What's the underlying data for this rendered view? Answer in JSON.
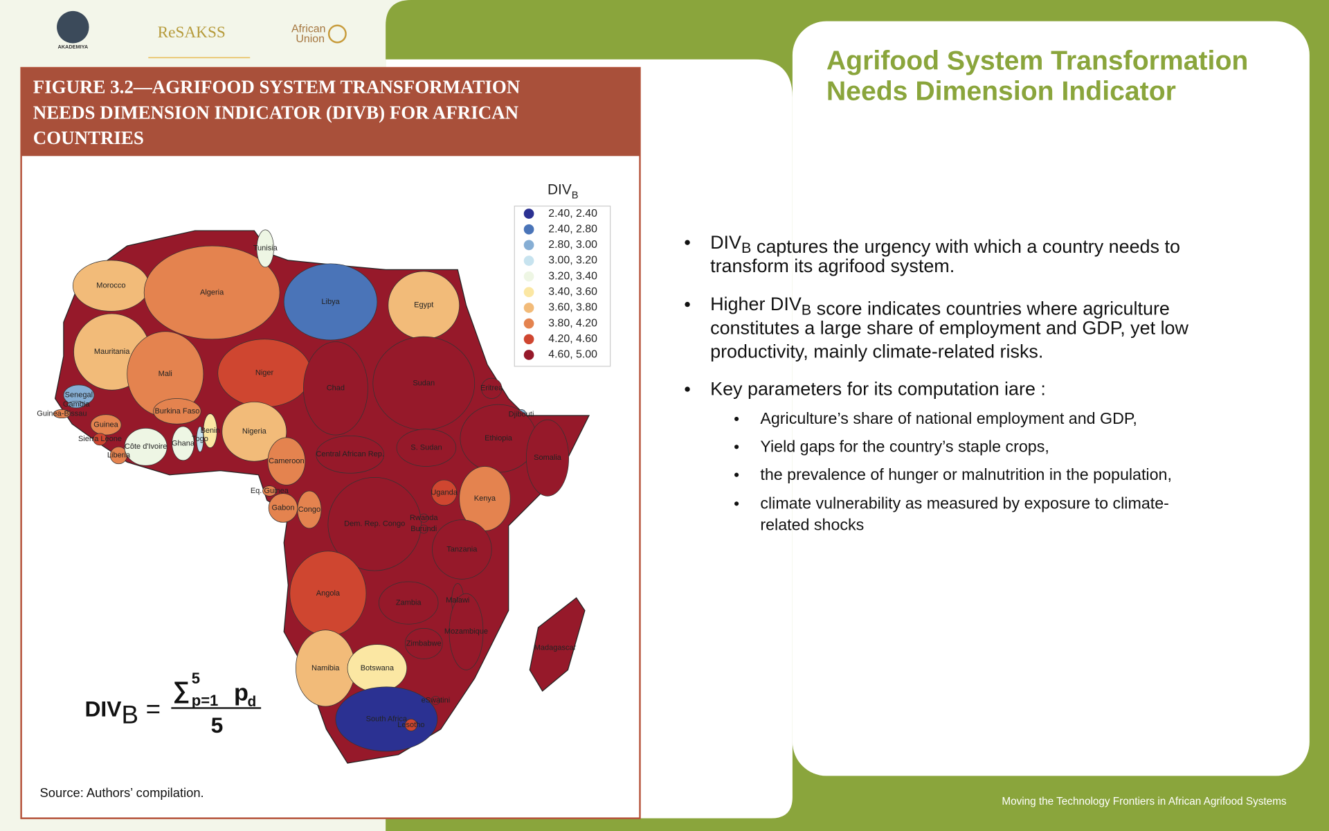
{
  "logos": {
    "akademiya": "AKADEMIYA",
    "resakss": "ReSAKSS",
    "african_union": [
      "African",
      "Union"
    ]
  },
  "figure": {
    "title_lines": [
      "FIGURE 3.2—AGRIFOOD SYSTEM TRANSFORMATION",
      "NEEDS DIMENSION INDICATOR (DIVB) FOR AFRICAN",
      "COUNTRIES"
    ],
    "legend": {
      "title": "DIV",
      "title_sub": "B",
      "items": [
        {
          "label": "2.40, 2.40",
          "color": "#2b3192"
        },
        {
          "label": "2.40, 2.80",
          "color": "#4a74b8"
        },
        {
          "label": "2.80, 3.00",
          "color": "#86aed4"
        },
        {
          "label": "3.00, 3.20",
          "color": "#c7e3ef"
        },
        {
          "label": "3.20, 3.40",
          "color": "#eef6e4"
        },
        {
          "label": "3.40, 3.60",
          "color": "#fbe7a3"
        },
        {
          "label": "3.60, 3.80",
          "color": "#f2bb79"
        },
        {
          "label": "3.80, 4.20",
          "color": "#e4834f"
        },
        {
          "label": "4.20, 4.60",
          "color": "#cf4630"
        },
        {
          "label": "4.60, 5.00",
          "color": "#96192a"
        }
      ]
    },
    "countries": [
      {
        "name": "Morocco",
        "color": "#f2bb79"
      },
      {
        "name": "Algeria",
        "color": "#e4834f"
      },
      {
        "name": "Tunisia",
        "color": "#eef6e4"
      },
      {
        "name": "Libya",
        "color": "#4a74b8"
      },
      {
        "name": "Egypt",
        "color": "#f2bb79"
      },
      {
        "name": "Mauritania",
        "color": "#f2bb79"
      },
      {
        "name": "Mali",
        "color": "#e4834f"
      },
      {
        "name": "Niger",
        "color": "#cf4630"
      },
      {
        "name": "Chad",
        "color": "#96192a"
      },
      {
        "name": "Sudan",
        "color": "#96192a"
      },
      {
        "name": "Eritrea",
        "color": "#96192a"
      },
      {
        "name": "Djibouti",
        "color": "#86aed4"
      },
      {
        "name": "Senegal",
        "color": "#86aed4"
      },
      {
        "name": "Gambia",
        "color": "#86aed4"
      },
      {
        "name": "Guinea-Bissau",
        "color": "#e4834f"
      },
      {
        "name": "Guinea",
        "color": "#e4834f"
      },
      {
        "name": "Sierra Leone",
        "color": "#cf4630"
      },
      {
        "name": "Liberia",
        "color": "#e4834f"
      },
      {
        "name": "Côte d'Ivoire",
        "color": "#eef6e4"
      },
      {
        "name": "Burkina Faso",
        "color": "#e4834f"
      },
      {
        "name": "Ghana",
        "color": "#eef6e4"
      },
      {
        "name": "Togo",
        "color": "#c7e3ef"
      },
      {
        "name": "Benin",
        "color": "#fbe7a3"
      },
      {
        "name": "Nigeria",
        "color": "#f2bb79"
      },
      {
        "name": "Cameroon",
        "color": "#e4834f"
      },
      {
        "name": "Central African Rep.",
        "color": "#96192a"
      },
      {
        "name": "S. Sudan",
        "color": "#96192a"
      },
      {
        "name": "Ethiopia",
        "color": "#96192a"
      },
      {
        "name": "Somalia",
        "color": "#96192a"
      },
      {
        "name": "Eq. Guinea",
        "color": "#e4834f"
      },
      {
        "name": "Gabon",
        "color": "#e4834f"
      },
      {
        "name": "Congo",
        "color": "#e4834f"
      },
      {
        "name": "Dem. Rep. Congo",
        "color": "#96192a"
      },
      {
        "name": "Uganda",
        "color": "#cf4630"
      },
      {
        "name": "Kenya",
        "color": "#e4834f"
      },
      {
        "name": "Rwanda",
        "color": "#96192a"
      },
      {
        "name": "Burundi",
        "color": "#96192a"
      },
      {
        "name": "Tanzania",
        "color": "#96192a"
      },
      {
        "name": "Angola",
        "color": "#cf4630"
      },
      {
        "name": "Zambia",
        "color": "#96192a"
      },
      {
        "name": "Malawi",
        "color": "#96192a"
      },
      {
        "name": "Mozambique",
        "color": "#96192a"
      },
      {
        "name": "Zimbabwe",
        "color": "#96192a"
      },
      {
        "name": "Madagascar",
        "color": "#96192a"
      },
      {
        "name": "Namibia",
        "color": "#f2bb79"
      },
      {
        "name": "Botswana",
        "color": "#fbe7a3"
      },
      {
        "name": "South Africa",
        "color": "#2b3192"
      },
      {
        "name": "eSwatini",
        "color": "#96192a"
      },
      {
        "name": "Lesotho",
        "color": "#cf4630"
      }
    ],
    "formula": {
      "lhs": "DIV",
      "lhs_sub": "B",
      "eq": "=",
      "sum": "∑",
      "sum_sup": "5",
      "sum_sub": "p=1",
      "term": "p",
      "term_sub": "d",
      "denominator": "5"
    },
    "source": "Source: Authors’ compilation."
  },
  "slide": {
    "title_lines": [
      "Agrifood System Transformation",
      "Needs Dimension Indicator"
    ],
    "bullets": [
      {
        "lines": [
          [
            "DIV",
            {
              "sub": "B"
            },
            " captures the urgency with which a country needs to"
          ],
          [
            "transform its agrifood system."
          ]
        ]
      },
      {
        "lines": [
          [
            "Higher DIV",
            {
              "sub": "B"
            },
            " score indicates countries where agriculture"
          ],
          [
            "constitutes a large share of employment and GDP, yet low"
          ],
          [
            "productivity, mainly climate-related risks."
          ]
        ]
      },
      {
        "lines": [
          [
            "Key parameters for its computation iare :"
          ]
        ]
      }
    ],
    "sub_bullets": [
      {
        "lines": [
          "Agriculture’s share of national employment and GDP,"
        ]
      },
      {
        "lines": [
          "Yield gaps for the country’s staple crops,"
        ]
      },
      {
        "lines": [
          "the prevalence of hunger or malnutrition in the population,"
        ]
      },
      {
        "lines": [
          "climate vulnerability as measured by exposure to climate-",
          "related shocks"
        ]
      }
    ],
    "footer": "Moving the Technology Frontiers in African Agrifood Systems"
  }
}
